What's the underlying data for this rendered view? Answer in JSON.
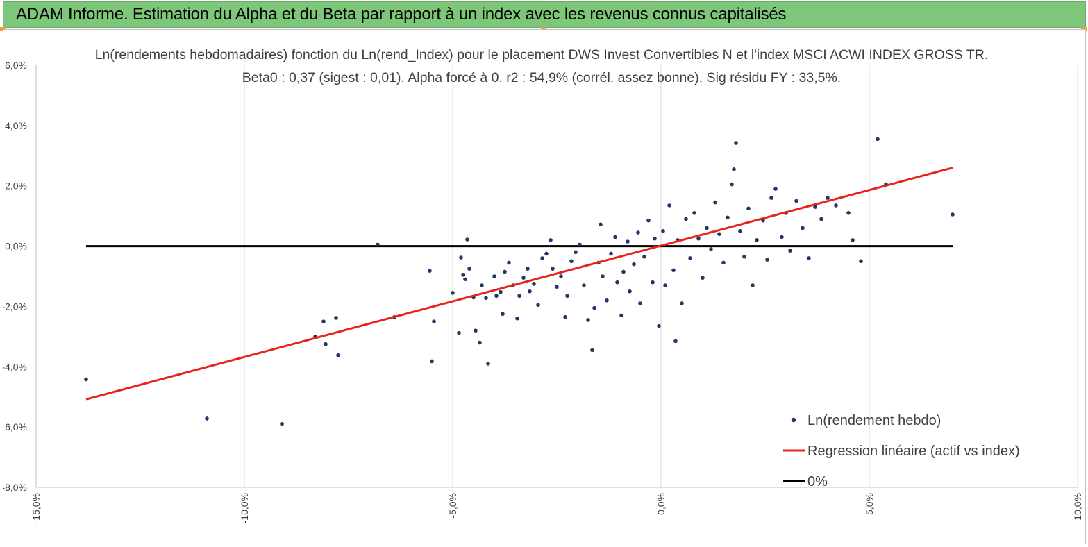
{
  "banner": {
    "title": "ADAM Informe. Estimation du Alpha et du Beta par rapport à un index avec les revenus connus capitalisés",
    "color": "#7dc67a"
  },
  "chart_data": {
    "type": "scatter",
    "title": "Ln(rendements hebdomadaires) fonction du Ln(rend_Index) pour le placement DWS Invest Convertibles N et l'index MSCI ACWI INDEX GROSS TR.",
    "subtitle": "Beta0 : 0,37  (sigest : 0,01). Alpha forcé à 0. r2 : 54,9% (corrél. assez bonne). Sig résidu FY : 33,5%.",
    "xlabel": "",
    "ylabel": "",
    "xlim": [
      -15,
      10
    ],
    "ylim": [
      -8,
      6
    ],
    "x_ticks": [
      "-15,0%",
      "-10,0%",
      "-5,0%",
      "0,0%",
      "5,0%",
      "10,0%"
    ],
    "y_ticks": [
      "6,0%",
      "4,0%",
      "2,0%",
      "0,0%",
      "-2,0%",
      "-4,0%",
      "-6,0%",
      "-8,0%"
    ],
    "x_tick_values": [
      -15,
      -10,
      -5,
      0,
      5,
      10
    ],
    "y_tick_values": [
      6,
      4,
      2,
      0,
      -2,
      -4,
      -6,
      -8
    ],
    "grid": "vertical",
    "legend_position": "bottom-right",
    "series": [
      {
        "name": "Ln(rendement hebdo)",
        "kind": "points",
        "color": "#1f3864",
        "points": [
          [
            -13.8,
            -4.42
          ],
          [
            -10.9,
            -5.72
          ],
          [
            -9.1,
            -5.9
          ],
          [
            -8.3,
            -3.0
          ],
          [
            -8.1,
            -2.5
          ],
          [
            -8.05,
            -3.25
          ],
          [
            -7.8,
            -2.38
          ],
          [
            -7.75,
            -3.62
          ],
          [
            -6.8,
            0.05
          ],
          [
            -6.4,
            -2.35
          ],
          [
            -5.55,
            -0.82
          ],
          [
            -5.5,
            -3.82
          ],
          [
            -5.45,
            -2.5
          ],
          [
            -5.0,
            -1.55
          ],
          [
            -4.85,
            -2.88
          ],
          [
            -4.8,
            -0.38
          ],
          [
            -4.75,
            -0.95
          ],
          [
            -4.7,
            -1.1
          ],
          [
            -4.65,
            0.22
          ],
          [
            -4.6,
            -0.75
          ],
          [
            -4.5,
            -1.7
          ],
          [
            -4.45,
            -2.8
          ],
          [
            -4.35,
            -3.2
          ],
          [
            -4.3,
            -1.3
          ],
          [
            -4.2,
            -1.72
          ],
          [
            -4.15,
            -3.9
          ],
          [
            -4.0,
            -1.0
          ],
          [
            -3.95,
            -1.65
          ],
          [
            -3.85,
            -1.52
          ],
          [
            -3.8,
            -2.25
          ],
          [
            -3.75,
            -0.85
          ],
          [
            -3.65,
            -0.55
          ],
          [
            -3.55,
            -1.3
          ],
          [
            -3.45,
            -2.4
          ],
          [
            -3.4,
            -1.65
          ],
          [
            -3.3,
            -1.05
          ],
          [
            -3.2,
            -0.75
          ],
          [
            -3.15,
            -1.5
          ],
          [
            -3.05,
            -1.25
          ],
          [
            -2.95,
            -1.95
          ],
          [
            -2.85,
            -0.4
          ],
          [
            -2.75,
            -0.25
          ],
          [
            -2.65,
            0.2
          ],
          [
            -2.6,
            -0.75
          ],
          [
            -2.5,
            -1.35
          ],
          [
            -2.4,
            -1.0
          ],
          [
            -2.3,
            -2.35
          ],
          [
            -2.25,
            -1.65
          ],
          [
            -2.15,
            -0.5
          ],
          [
            -2.05,
            -0.2
          ],
          [
            -1.95,
            0.05
          ],
          [
            -1.85,
            -1.3
          ],
          [
            -1.75,
            -2.45
          ],
          [
            -1.65,
            -3.45
          ],
          [
            -1.6,
            -2.05
          ],
          [
            -1.5,
            -0.55
          ],
          [
            -1.45,
            0.72
          ],
          [
            -1.4,
            -1.0
          ],
          [
            -1.3,
            -1.8
          ],
          [
            -1.2,
            -0.25
          ],
          [
            -1.1,
            0.3
          ],
          [
            -1.05,
            -1.2
          ],
          [
            -0.95,
            -2.3
          ],
          [
            -0.9,
            -0.85
          ],
          [
            -0.8,
            0.15
          ],
          [
            -0.75,
            -1.5
          ],
          [
            -0.65,
            -0.6
          ],
          [
            -0.55,
            0.45
          ],
          [
            -0.5,
            -1.9
          ],
          [
            -0.4,
            -0.35
          ],
          [
            -0.3,
            0.85
          ],
          [
            -0.2,
            -1.2
          ],
          [
            -0.15,
            0.25
          ],
          [
            -0.05,
            -2.65
          ],
          [
            0.05,
            0.5
          ],
          [
            0.1,
            -1.3
          ],
          [
            0.2,
            1.35
          ],
          [
            0.3,
            -0.8
          ],
          [
            0.35,
            -3.15
          ],
          [
            0.4,
            0.2
          ],
          [
            0.5,
            -1.9
          ],
          [
            0.6,
            0.9
          ],
          [
            0.7,
            -0.4
          ],
          [
            0.8,
            1.1
          ],
          [
            0.9,
            0.25
          ],
          [
            1.0,
            -1.05
          ],
          [
            1.1,
            0.6
          ],
          [
            1.2,
            -0.1
          ],
          [
            1.3,
            1.45
          ],
          [
            1.4,
            0.4
          ],
          [
            1.5,
            -0.55
          ],
          [
            1.6,
            0.95
          ],
          [
            1.7,
            2.05
          ],
          [
            1.75,
            2.55
          ],
          [
            1.8,
            3.42
          ],
          [
            1.9,
            0.5
          ],
          [
            2.0,
            -0.35
          ],
          [
            2.1,
            1.25
          ],
          [
            2.2,
            -1.3
          ],
          [
            2.3,
            0.2
          ],
          [
            2.45,
            0.85
          ],
          [
            2.55,
            -0.45
          ],
          [
            2.65,
            1.6
          ],
          [
            2.75,
            1.9
          ],
          [
            2.9,
            0.3
          ],
          [
            3.0,
            1.1
          ],
          [
            3.1,
            -0.15
          ],
          [
            3.25,
            1.5
          ],
          [
            3.4,
            0.6
          ],
          [
            3.55,
            -0.4
          ],
          [
            3.7,
            1.3
          ],
          [
            3.85,
            0.9
          ],
          [
            4.0,
            1.6
          ],
          [
            4.2,
            1.35
          ],
          [
            4.5,
            1.1
          ],
          [
            4.6,
            0.2
          ],
          [
            4.8,
            -0.5
          ],
          [
            5.2,
            3.55
          ],
          [
            5.4,
            2.05
          ],
          [
            7.0,
            1.05
          ]
        ]
      },
      {
        "name": "Regression linéaire (actif vs index)",
        "kind": "line",
        "color": "#e8231c",
        "points": [
          [
            -13.8,
            -5.08
          ],
          [
            7.0,
            2.6
          ]
        ]
      },
      {
        "name": "0%",
        "kind": "line",
        "color": "#000000",
        "points": [
          [
            -13.8,
            0.0
          ],
          [
            7.0,
            0.0
          ]
        ]
      }
    ]
  }
}
